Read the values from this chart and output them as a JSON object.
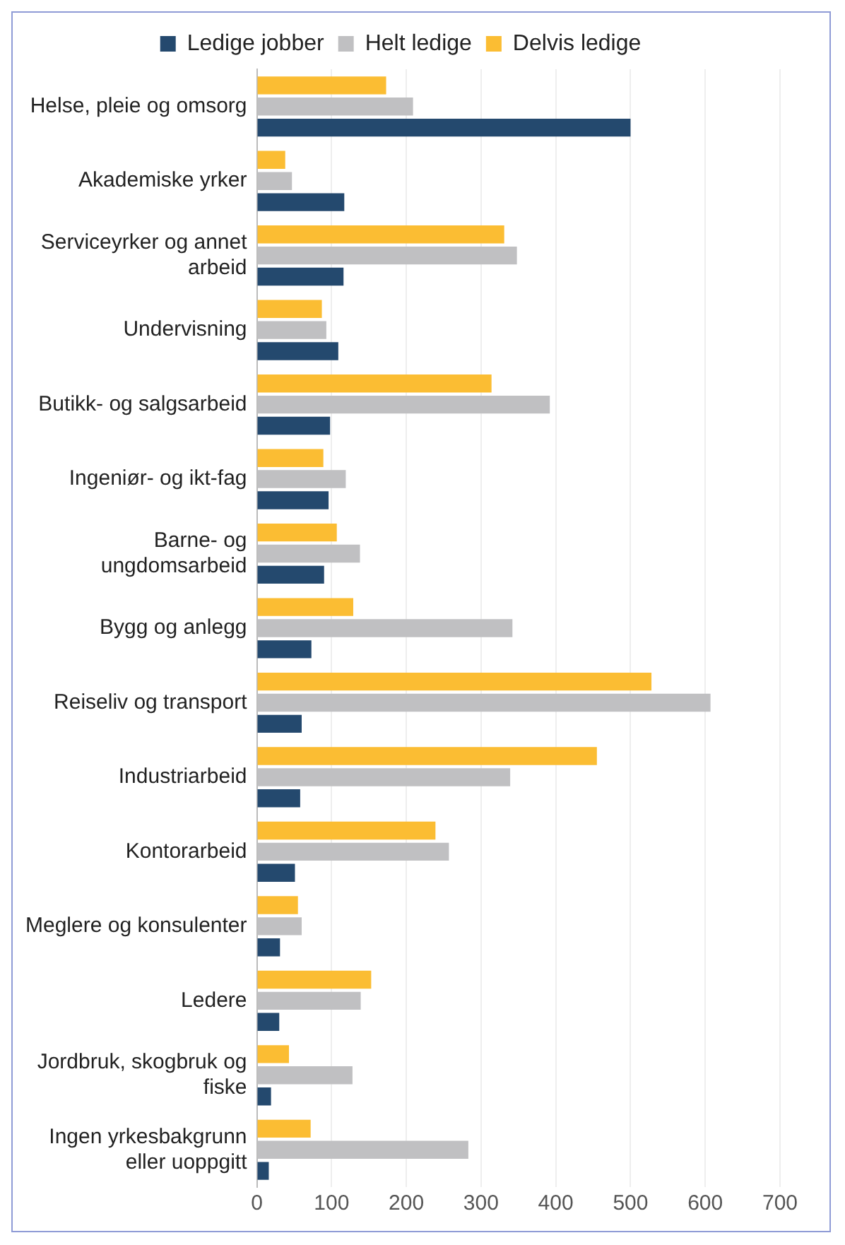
{
  "chart_data": {
    "type": "bar",
    "orientation": "horizontal",
    "categories": [
      "Helse, pleie og omsorg",
      "Akademiske yrker",
      "Serviceyrker og annet arbeid",
      "Undervisning",
      "Butikk- og salgsarbeid",
      "Ingeniør- og ikt-fag",
      "Barne- og ungdomsarbeid",
      "Bygg og anlegg",
      "Reiseliv og transport",
      "Industriarbeid",
      "Kontorarbeid",
      "Meglere og konsulenter",
      "Ledere",
      "Jordbruk, skogbruk og fiske",
      "Ingen yrkesbakgrunn eller uoppgitt"
    ],
    "series": [
      {
        "name": "Ledige jobber",
        "color": "#24496e",
        "values": [
          500,
          117,
          116,
          109,
          98,
          96,
          90,
          73,
          60,
          58,
          51,
          31,
          30,
          19,
          16
        ]
      },
      {
        "name": "Helt ledige",
        "color": "#c0c0c2",
        "values": [
          209,
          47,
          348,
          93,
          392,
          119,
          138,
          342,
          607,
          339,
          257,
          60,
          139,
          128,
          283
        ]
      },
      {
        "name": "Delvis ledige",
        "color": "#fbbd33",
        "values": [
          173,
          38,
          331,
          87,
          314,
          89,
          107,
          129,
          528,
          455,
          239,
          55,
          153,
          43,
          72
        ]
      }
    ],
    "xlim": [
      0,
      700
    ],
    "xticks": [
      0,
      100,
      200,
      300,
      400,
      500,
      600,
      700
    ],
    "grid": "x",
    "legend": "top"
  }
}
